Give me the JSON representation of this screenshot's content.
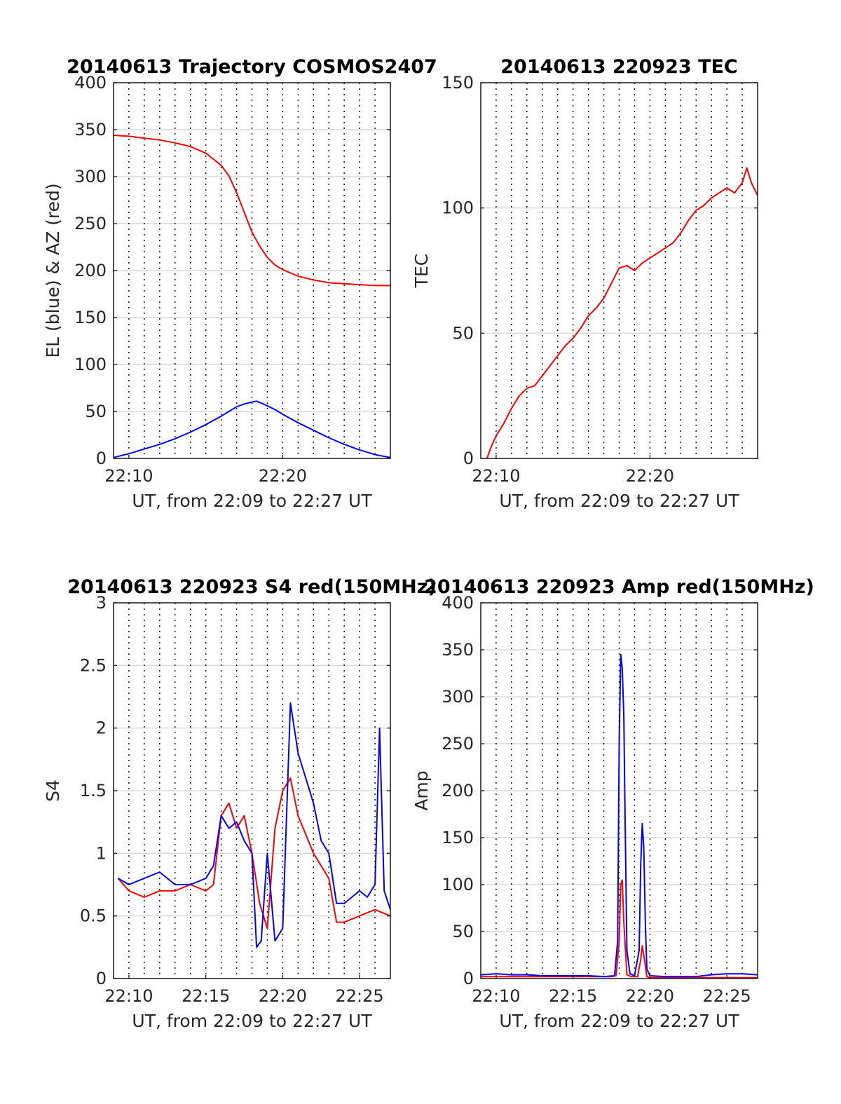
{
  "figure": {
    "colors": {
      "primary": "#ff0000",
      "secondary": "#0000ff",
      "grid": "#d0d0d0",
      "axis": "#262626"
    }
  },
  "chart_data": [
    {
      "type": "line",
      "title": "20140613 Trajectory COSMOS2407",
      "xlabel": "UT, from 22:09 to 22:27 UT",
      "ylabel": "EL (blue) & AZ (red)",
      "xlim": [
        9,
        27
      ],
      "ylim": [
        0,
        400
      ],
      "xtick_labels": [
        "22:10",
        "22:20"
      ],
      "ytick_labels": [
        "0",
        "50",
        "100",
        "150",
        "200",
        "250",
        "300",
        "350",
        "400"
      ],
      "grid": true,
      "series": [
        {
          "color": "#ff0000",
          "x": [
            9.0,
            10.0,
            11.0,
            12.0,
            13.0,
            14.0,
            15.0,
            16.0,
            16.5,
            17.0,
            17.5,
            18.0,
            18.5,
            19.0,
            19.5,
            20.0,
            21.0,
            22.0,
            23.0,
            24.0,
            25.0,
            26.0,
            27.0
          ],
          "y": [
            344,
            343,
            341,
            339,
            336,
            332,
            325,
            312,
            301,
            283,
            262,
            241,
            226,
            214,
            206,
            201,
            194,
            190,
            187,
            186,
            185,
            184,
            184
          ]
        },
        {
          "color": "#0000ff",
          "x": [
            9.0,
            10.0,
            11.0,
            12.0,
            13.0,
            14.0,
            15.0,
            16.0,
            16.5,
            17.0,
            17.5,
            18.0,
            18.3,
            18.6,
            19.0,
            19.5,
            20.0,
            21.0,
            22.0,
            23.0,
            24.0,
            25.0,
            26.0,
            27.0
          ],
          "y": [
            1,
            5,
            10,
            15,
            21,
            28,
            36,
            45,
            50,
            55,
            58,
            60,
            61,
            59,
            56,
            52,
            47,
            38,
            30,
            22,
            15,
            9,
            4,
            1
          ]
        }
      ]
    },
    {
      "type": "line",
      "title": "20140613 220923 TEC",
      "xlabel": "UT, from 22:09 to 22:27 UT",
      "ylabel": "TEC",
      "xlim": [
        9,
        27
      ],
      "ylim": [
        0,
        150
      ],
      "xtick_labels": [
        "22:10",
        "22:20"
      ],
      "ytick_labels": [
        "0",
        "50",
        "100",
        "150"
      ],
      "grid": true,
      "series": [
        {
          "color": "#ff0000",
          "x": [
            9.4,
            9.7,
            10.0,
            10.5,
            11.0,
            11.5,
            12.0,
            12.5,
            13.0,
            13.5,
            14.0,
            14.5,
            15.0,
            15.5,
            16.0,
            16.5,
            17.0,
            17.5,
            18.0,
            18.5,
            19.0,
            19.5,
            20.0,
            20.5,
            21.0,
            21.5,
            22.0,
            22.5,
            23.0,
            23.5,
            24.0,
            24.5,
            25.0,
            25.5,
            26.0,
            26.3,
            26.6,
            27.0
          ],
          "y": [
            0,
            5,
            9,
            14,
            20,
            25,
            28,
            29,
            33,
            37,
            41,
            45,
            48,
            52,
            57,
            60,
            64,
            70,
            76,
            77,
            75,
            78,
            80,
            82,
            84,
            86,
            90,
            95,
            99,
            101,
            104,
            106,
            108,
            106,
            110,
            116,
            110,
            105
          ]
        }
      ]
    },
    {
      "type": "line",
      "title": "20140613 220923 S4 red(150MHz)",
      "xlabel": "UT, from 22:09 to 22:27 UT",
      "ylabel": "S4",
      "xlim": [
        9,
        27
      ],
      "ylim": [
        0,
        3
      ],
      "xtick_labels": [
        "22:10",
        "22:15",
        "22:20",
        "22:25"
      ],
      "ytick_labels": [
        "0",
        "0.5",
        "1",
        "1.5",
        "2",
        "2.5",
        "3"
      ],
      "grid": true,
      "series": [
        {
          "color": "#ff0000",
          "x": [
            9.3,
            10.0,
            11.0,
            12.0,
            13.0,
            14.0,
            15.0,
            15.5,
            16.0,
            16.5,
            17.0,
            17.5,
            18.0,
            18.5,
            19.0,
            19.5,
            20.0,
            20.5,
            21.0,
            22.0,
            23.0,
            23.5,
            24.0,
            25.0,
            26.0,
            27.0
          ],
          "y": [
            0.8,
            0.7,
            0.65,
            0.7,
            0.7,
            0.75,
            0.7,
            0.75,
            1.3,
            1.4,
            1.2,
            1.3,
            1.0,
            0.6,
            0.4,
            1.2,
            1.5,
            1.6,
            1.3,
            1.0,
            0.8,
            0.45,
            0.45,
            0.5,
            0.55,
            0.5
          ]
        },
        {
          "color": "#0000ff",
          "x": [
            9.3,
            10.0,
            11.0,
            12.0,
            13.0,
            14.0,
            15.0,
            15.5,
            16.0,
            16.5,
            17.0,
            17.5,
            18.0,
            18.3,
            18.6,
            19.0,
            19.5,
            20.0,
            20.5,
            21.0,
            21.5,
            22.0,
            22.5,
            23.0,
            23.5,
            24.0,
            25.0,
            25.5,
            26.0,
            26.3,
            26.6,
            27.0
          ],
          "y": [
            0.8,
            0.75,
            0.8,
            0.85,
            0.75,
            0.75,
            0.8,
            0.9,
            1.3,
            1.2,
            1.25,
            1.1,
            1.0,
            0.25,
            0.3,
            1.0,
            0.3,
            0.4,
            2.2,
            1.8,
            1.6,
            1.4,
            1.1,
            1.0,
            0.6,
            0.6,
            0.7,
            0.65,
            0.75,
            2.0,
            0.7,
            0.55
          ]
        }
      ]
    },
    {
      "type": "line",
      "title": "20140613 220923 Amp red(150MHz)",
      "xlabel": "UT, from 22:09 to 22:27 UT",
      "ylabel": "Amp",
      "xlim": [
        9,
        27
      ],
      "ylim": [
        0,
        400
      ],
      "xtick_labels": [
        "22:10",
        "22:15",
        "22:20",
        "22:25"
      ],
      "ytick_labels": [
        "0",
        "50",
        "100",
        "150",
        "200",
        "250",
        "300",
        "350",
        "400"
      ],
      "grid": true,
      "series": [
        {
          "color": "#ff0000",
          "x": [
            9.0,
            17.5,
            17.8,
            18.0,
            18.1,
            18.2,
            18.3,
            18.5,
            18.8,
            19.2,
            19.4,
            19.5,
            19.6,
            19.8,
            20.0,
            27.0
          ],
          "y": [
            2,
            2,
            3,
            40,
            100,
            105,
            60,
            4,
            2,
            2,
            20,
            35,
            25,
            2,
            1,
            1
          ]
        },
        {
          "color": "#0000ff",
          "x": [
            9.0,
            10.0,
            11.0,
            12.0,
            13.0,
            14.0,
            15.0,
            16.0,
            17.0,
            17.7,
            17.9,
            18.0,
            18.1,
            18.2,
            18.3,
            18.4,
            18.5,
            18.7,
            19.0,
            19.3,
            19.4,
            19.5,
            19.6,
            19.7,
            19.8,
            20.0,
            21.0,
            22.0,
            23.0,
            24.0,
            25.0,
            26.0,
            27.0
          ],
          "y": [
            4,
            5,
            4,
            4,
            3,
            3,
            3,
            3,
            2,
            3,
            40,
            250,
            345,
            330,
            280,
            150,
            30,
            5,
            3,
            30,
            120,
            165,
            140,
            60,
            10,
            3,
            2,
            2,
            2,
            4,
            5,
            5,
            4
          ]
        }
      ]
    }
  ]
}
